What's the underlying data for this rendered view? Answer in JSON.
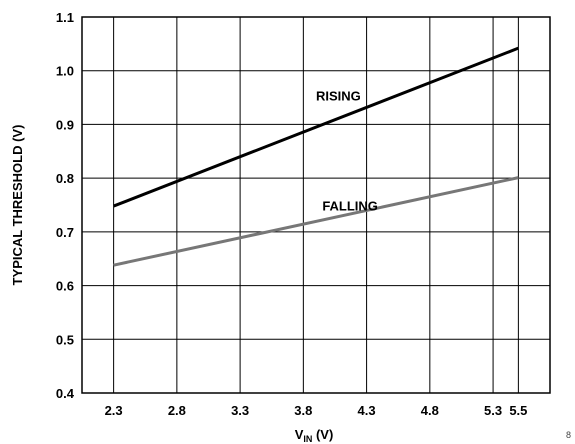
{
  "chart_data": {
    "type": "line",
    "title": "",
    "xlabel": "V",
    "xlabel_sub": "IN",
    "xlabel_unit": " (V)",
    "ylabel": "TYPICAL THRESHOLD (V)",
    "xlim": [
      2.05,
      5.75
    ],
    "ylim": [
      0.4,
      1.1
    ],
    "x_ticks": [
      "2.3",
      "2.8",
      "3.3",
      "3.8",
      "4.3",
      "4.8",
      "5.3",
      "5.5"
    ],
    "x_tick_values": [
      2.3,
      2.8,
      3.3,
      3.8,
      4.3,
      4.8,
      5.3,
      5.5
    ],
    "y_ticks": [
      "0.4",
      "0.5",
      "0.6",
      "0.7",
      "0.8",
      "0.9",
      "1.0",
      "1.1"
    ],
    "y_tick_values": [
      0.4,
      0.5,
      0.6,
      0.7,
      0.8,
      0.9,
      1.0,
      1.1
    ],
    "grid": true,
    "legend": "inline",
    "series": [
      {
        "name": "RISING",
        "x": [
          2.3,
          5.5
        ],
        "y": [
          0.748,
          1.042
        ],
        "color": "#000000",
        "label_at": [
          3.9,
          0.945
        ]
      },
      {
        "name": "FALLING",
        "x": [
          2.3,
          5.5
        ],
        "y": [
          0.638,
          0.801
        ],
        "color": "#777777",
        "label_at": [
          3.95,
          0.74
        ]
      }
    ],
    "corner_text": "8"
  }
}
